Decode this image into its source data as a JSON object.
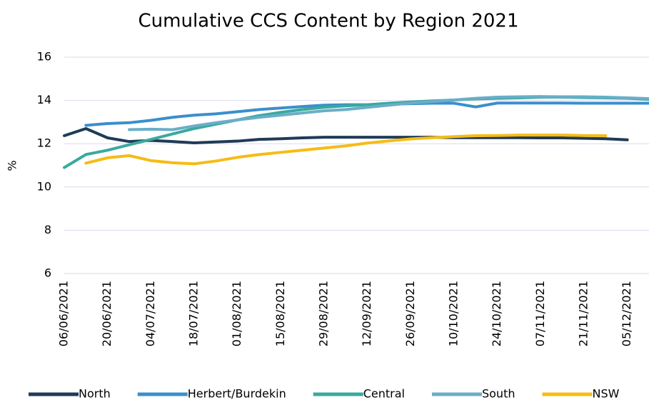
{
  "chart_data": {
    "type": "line",
    "title": "Cumulative CCS Content by Region 2021",
    "y_label": "%",
    "categories": [
      "06/06/2021",
      null,
      "20/06/2021",
      null,
      "04/07/2021",
      null,
      "18/07/2021",
      null,
      "01/08/2021",
      null,
      "15/08/2021",
      null,
      "29/08/2021",
      null,
      "12/09/2021",
      null,
      "26/09/2021",
      null,
      "10/10/2021",
      null,
      "24/10/2021",
      null,
      "07/11/2021",
      null,
      "21/11/2021",
      null,
      "05/12/2021",
      null
    ],
    "ylim": [
      6,
      16
    ],
    "yticks": [
      6,
      8,
      10,
      12,
      14,
      16
    ],
    "grid": true,
    "legend": "bottom",
    "series": [
      {
        "name": "North",
        "color": "#1f3b57",
        "values": [
          12.37,
          12.7,
          12.27,
          12.1,
          12.15,
          12.1,
          12.04,
          12.08,
          12.12,
          12.2,
          12.23,
          12.27,
          12.3,
          12.3,
          12.3,
          12.3,
          12.3,
          12.3,
          12.28,
          12.28,
          12.28,
          12.28,
          12.27,
          12.27,
          12.25,
          12.23,
          12.18,
          null
        ]
      },
      {
        "name": "Herbert/Burdekin",
        "color": "#3b8fcc",
        "values": [
          null,
          12.85,
          12.93,
          12.97,
          13.08,
          13.22,
          13.32,
          13.38,
          13.48,
          13.58,
          13.65,
          13.72,
          13.78,
          13.8,
          13.8,
          13.82,
          13.85,
          13.87,
          13.87,
          13.7,
          13.88,
          13.88,
          13.88,
          13.88,
          13.87,
          13.87,
          13.87,
          13.87
        ]
      },
      {
        "name": "Central",
        "color": "#3aa99f",
        "values": [
          10.9,
          11.5,
          11.7,
          11.95,
          12.2,
          12.45,
          12.7,
          12.9,
          13.1,
          13.3,
          13.45,
          13.58,
          13.68,
          13.75,
          13.8,
          13.87,
          13.93,
          13.98,
          14.02,
          14.07,
          14.1,
          14.12,
          14.15,
          14.15,
          14.13,
          14.12,
          14.1,
          14.05
        ]
      },
      {
        "name": "South",
        "color": "#6aaec8",
        "values": [
          null,
          null,
          null,
          12.65,
          12.67,
          12.65,
          12.82,
          12.97,
          13.1,
          13.22,
          13.32,
          13.42,
          13.52,
          13.58,
          13.68,
          13.78,
          13.88,
          13.95,
          14.02,
          14.1,
          14.15,
          14.17,
          14.18,
          14.17,
          14.17,
          14.15,
          14.12,
          14.08
        ]
      },
      {
        "name": "NSW",
        "color": "#f6bc15",
        "values": [
          null,
          11.1,
          11.35,
          11.45,
          11.22,
          11.12,
          11.07,
          11.2,
          11.37,
          11.5,
          11.6,
          11.7,
          11.8,
          11.9,
          12.03,
          12.13,
          12.22,
          12.28,
          12.33,
          12.37,
          12.38,
          12.4,
          12.4,
          12.4,
          12.38,
          12.37,
          null,
          null
        ]
      }
    ]
  }
}
